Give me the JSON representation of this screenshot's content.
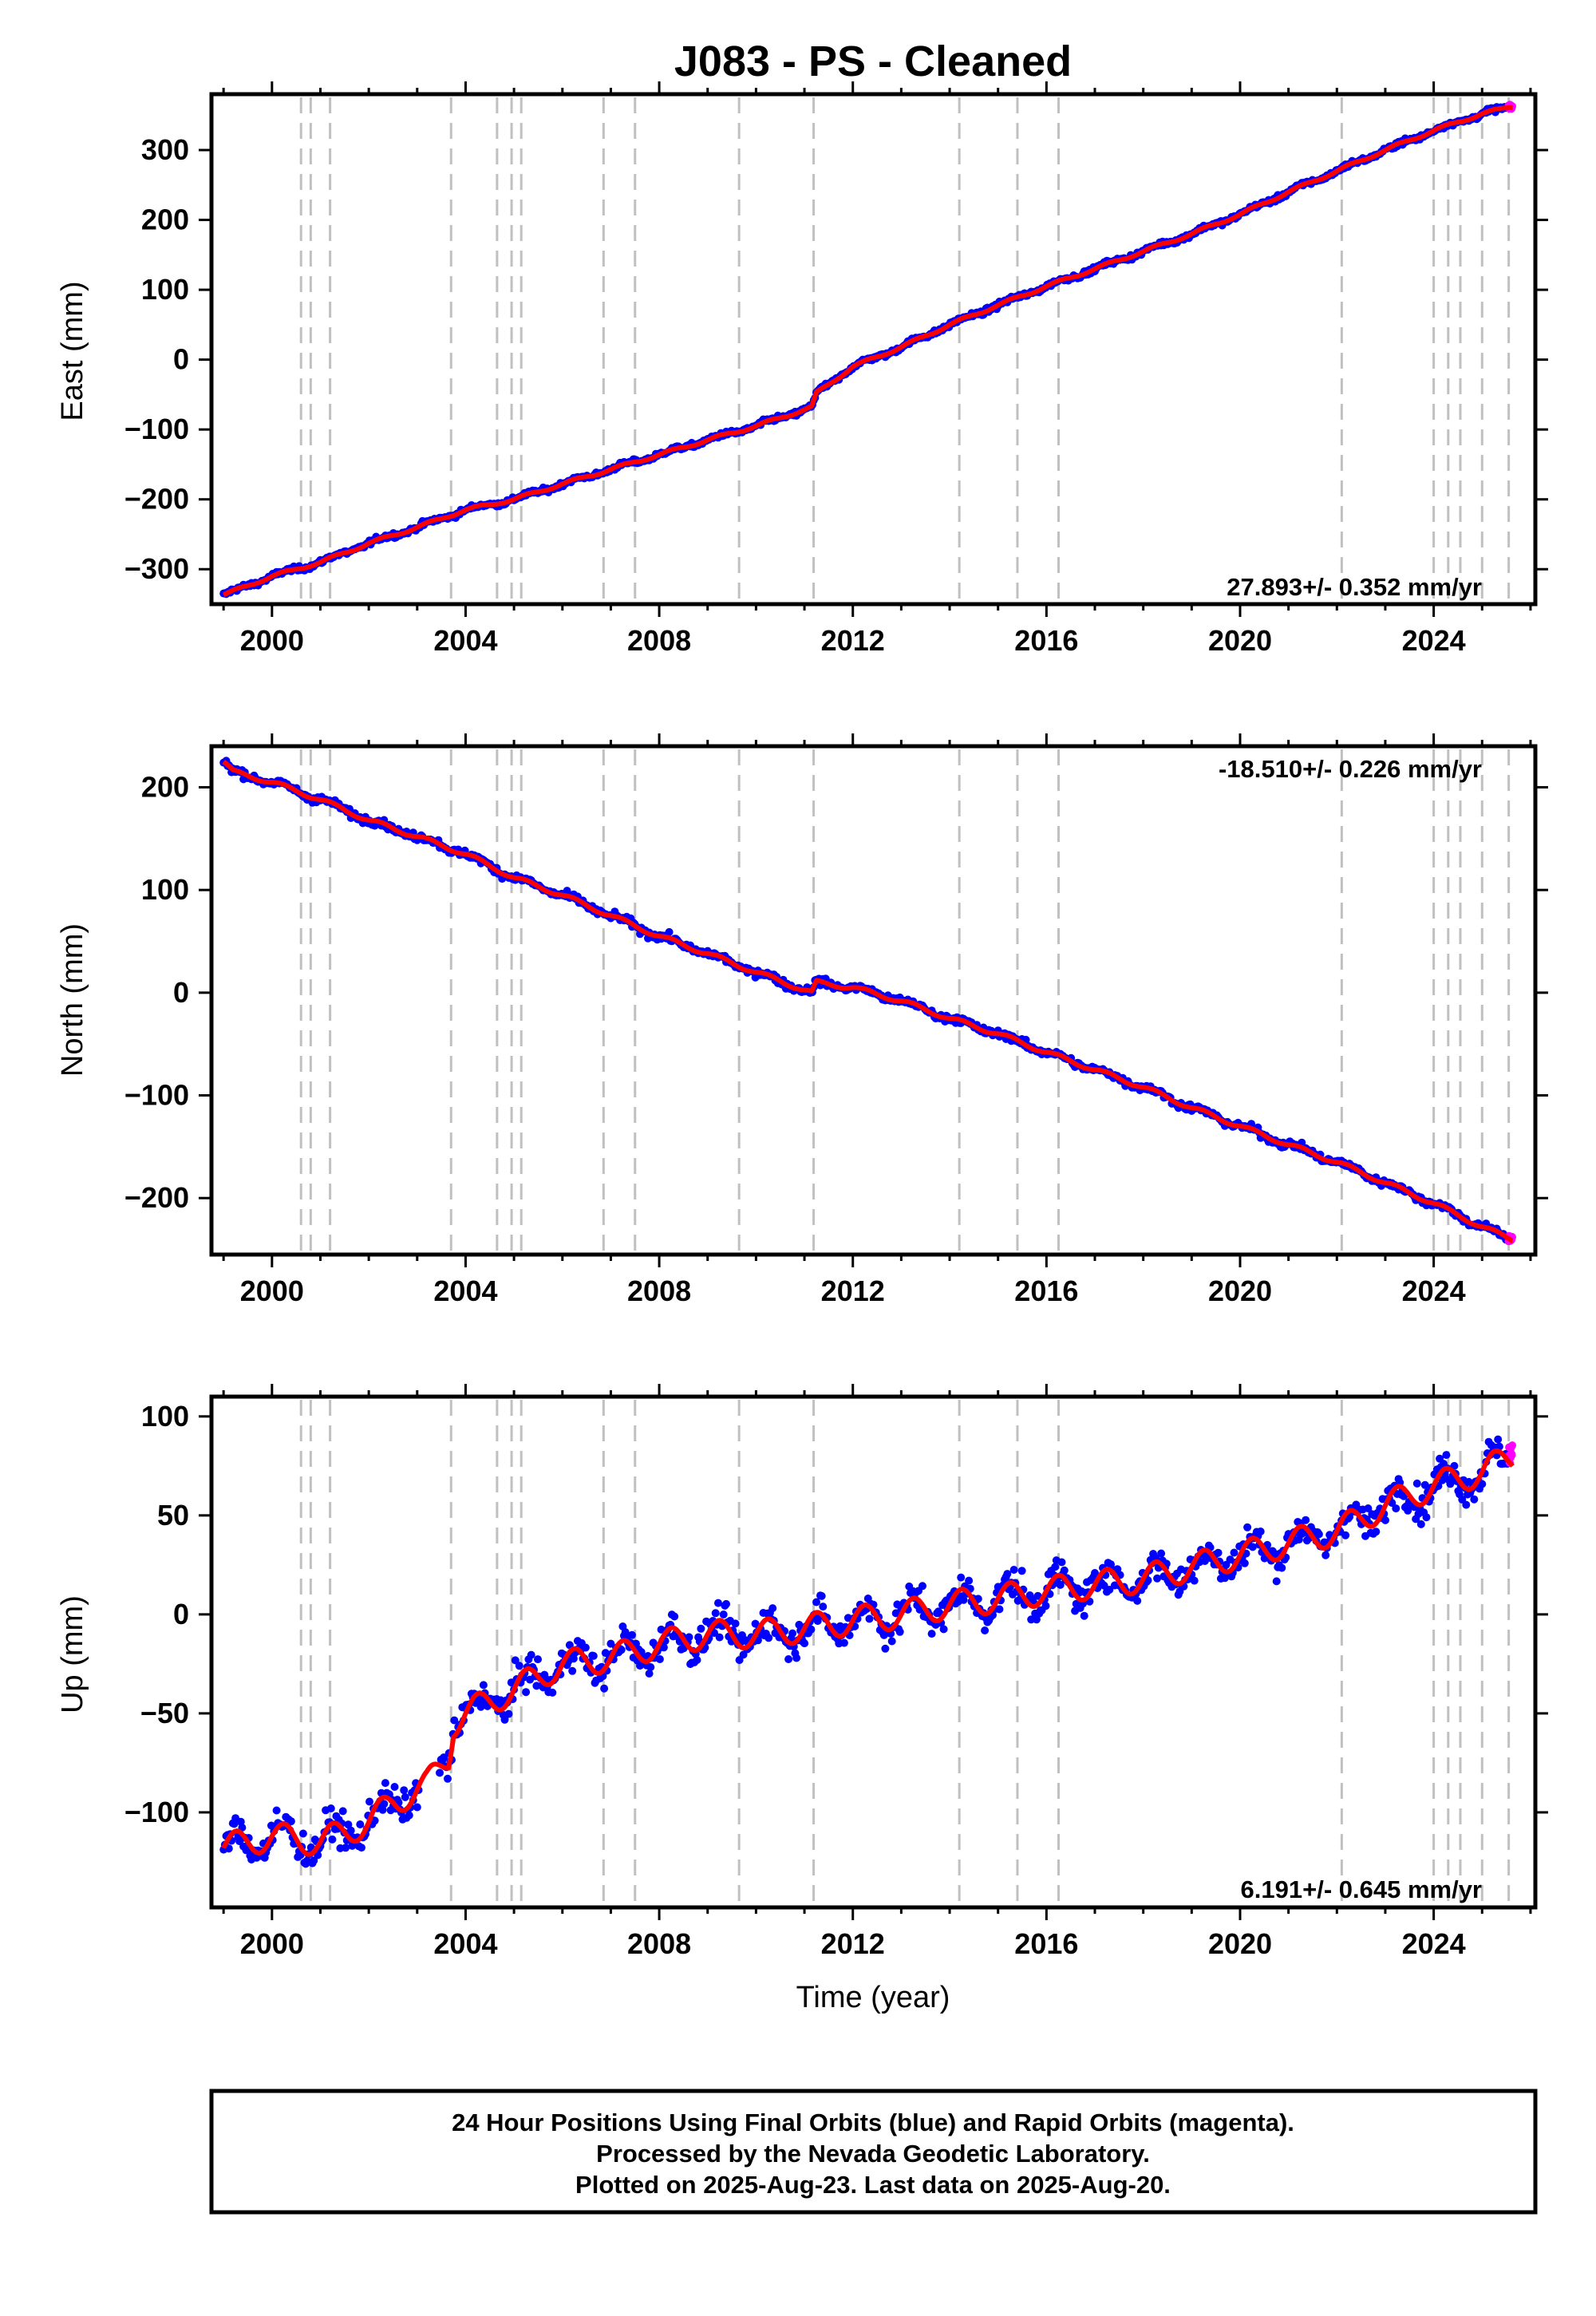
{
  "title": "J083  - PS - Cleaned",
  "xlabel": "Time (year)",
  "note": {
    "line1": "24 Hour Positions Using Final Orbits (blue) and Rapid Orbits (magenta).",
    "line2": "Processed by the Nevada Geodetic Laboratory.",
    "line3": "Plotted on 2025-Aug-23. Last data on 2025-Aug-20."
  },
  "colors": {
    "final_orbits": "#0000ff",
    "rapid_orbits": "#ff00ff",
    "model_fit": "#ff0000",
    "event_lines": "#c0c0c0",
    "frame": "#000000"
  },
  "chart_data": [
    {
      "type": "scatter",
      "component": "east",
      "ylabel": "East (mm)",
      "rate_label": "27.893+/- 0.352 mm/yr",
      "rate_value": 27.893,
      "rate_sigma": 0.352,
      "xlim": [
        1998.75,
        2026.1
      ],
      "ylim": [
        -350,
        380
      ],
      "xticks": [
        2000,
        2004,
        2008,
        2012,
        2016,
        2020,
        2024
      ],
      "yticks": [
        -300,
        -200,
        -100,
        0,
        100,
        200,
        300
      ],
      "grid": false,
      "data_start": 1999.0,
      "final_end": 2025.55,
      "rapid_end": 2025.63,
      "offsets": [
        {
          "x": 2011.19,
          "y": 16
        }
      ],
      "series_points": [
        {
          "x": 1999.0,
          "y": -337
        },
        {
          "x": 2000.0,
          "y": -310
        },
        {
          "x": 2001.0,
          "y": -290
        },
        {
          "x": 2002.0,
          "y": -263
        },
        {
          "x": 2003.0,
          "y": -240
        },
        {
          "x": 2004.0,
          "y": -215
        },
        {
          "x": 2005.0,
          "y": -200
        },
        {
          "x": 2006.0,
          "y": -178
        },
        {
          "x": 2007.0,
          "y": -157
        },
        {
          "x": 2008.0,
          "y": -136
        },
        {
          "x": 2009.0,
          "y": -115
        },
        {
          "x": 2010.0,
          "y": -95
        },
        {
          "x": 2011.15,
          "y": -68
        },
        {
          "x": 2011.25,
          "y": -48
        },
        {
          "x": 2012.0,
          "y": -10
        },
        {
          "x": 2013.0,
          "y": 18
        },
        {
          "x": 2014.0,
          "y": 50
        },
        {
          "x": 2015.0,
          "y": 78
        },
        {
          "x": 2016.0,
          "y": 105
        },
        {
          "x": 2017.0,
          "y": 130
        },
        {
          "x": 2018.0,
          "y": 155
        },
        {
          "x": 2019.0,
          "y": 180
        },
        {
          "x": 2020.0,
          "y": 208
        },
        {
          "x": 2021.0,
          "y": 240
        },
        {
          "x": 2022.0,
          "y": 270
        },
        {
          "x": 2023.0,
          "y": 300
        },
        {
          "x": 2024.0,
          "y": 328
        },
        {
          "x": 2025.0,
          "y": 352
        },
        {
          "x": 2025.6,
          "y": 362
        }
      ],
      "seasonal_amplitude": 2,
      "scatter_sigma": 3
    },
    {
      "type": "scatter",
      "component": "north",
      "ylabel": "North (mm)",
      "rate_label": "-18.510+/- 0.226 mm/yr",
      "rate_value": -18.51,
      "rate_sigma": 0.226,
      "xlim": [
        1998.75,
        2026.1
      ],
      "ylim": [
        -255,
        240
      ],
      "xticks": [
        2000,
        2004,
        2008,
        2012,
        2016,
        2020,
        2024
      ],
      "yticks": [
        -200,
        -100,
        0,
        100,
        200
      ],
      "grid": false,
      "data_start": 1999.0,
      "final_end": 2025.55,
      "rapid_end": 2025.63,
      "offsets": [
        {
          "x": 2011.19,
          "y": 13
        }
      ],
      "series_points": [
        {
          "x": 1999.0,
          "y": 225
        },
        {
          "x": 1999.2,
          "y": 215
        },
        {
          "x": 2000.0,
          "y": 205
        },
        {
          "x": 2001.0,
          "y": 188
        },
        {
          "x": 2002.0,
          "y": 168
        },
        {
          "x": 2003.0,
          "y": 152
        },
        {
          "x": 2004.0,
          "y": 135
        },
        {
          "x": 2005.0,
          "y": 112
        },
        {
          "x": 2006.0,
          "y": 95
        },
        {
          "x": 2007.0,
          "y": 75
        },
        {
          "x": 2008.0,
          "y": 55
        },
        {
          "x": 2009.0,
          "y": 38
        },
        {
          "x": 2010.0,
          "y": 20
        },
        {
          "x": 2011.15,
          "y": 0
        },
        {
          "x": 2011.25,
          "y": 10
        },
        {
          "x": 2012.0,
          "y": 5
        },
        {
          "x": 2013.0,
          "y": -8
        },
        {
          "x": 2014.0,
          "y": -25
        },
        {
          "x": 2015.0,
          "y": -40
        },
        {
          "x": 2016.0,
          "y": -58
        },
        {
          "x": 2017.0,
          "y": -75
        },
        {
          "x": 2018.0,
          "y": -92
        },
        {
          "x": 2019.0,
          "y": -112
        },
        {
          "x": 2020.0,
          "y": -130
        },
        {
          "x": 2021.0,
          "y": -148
        },
        {
          "x": 2022.0,
          "y": -165
        },
        {
          "x": 2023.0,
          "y": -185
        },
        {
          "x": 2024.0,
          "y": -205
        },
        {
          "x": 2025.0,
          "y": -228
        },
        {
          "x": 2025.6,
          "y": -240
        }
      ],
      "seasonal_amplitude": 2,
      "scatter_sigma": 3
    },
    {
      "type": "scatter",
      "component": "up",
      "ylabel": "Up (mm)",
      "rate_label": "6.191+/- 0.645 mm/yr",
      "rate_value": 6.191,
      "rate_sigma": 0.645,
      "xlim": [
        1998.75,
        2026.1
      ],
      "ylim": [
        -148,
        110
      ],
      "xticks": [
        2000,
        2004,
        2008,
        2012,
        2016,
        2020,
        2024
      ],
      "yticks": [
        -100,
        -50,
        0,
        50,
        100
      ],
      "grid": false,
      "data_start": 1999.0,
      "final_end": 2025.55,
      "rapid_end": 2025.63,
      "data_gap": [
        2003.05,
        2003.45
      ],
      "offsets": [
        {
          "x": 2003.7,
          "y": 15
        }
      ],
      "series_points": [
        {
          "x": 1999.0,
          "y": -118
        },
        {
          "x": 2000.0,
          "y": -112
        },
        {
          "x": 2001.0,
          "y": -115
        },
        {
          "x": 2002.0,
          "y": -105
        },
        {
          "x": 2002.5,
          "y": -95
        },
        {
          "x": 2003.2,
          "y": -86
        },
        {
          "x": 2003.65,
          "y": -72
        },
        {
          "x": 2003.75,
          "y": -55
        },
        {
          "x": 2004.0,
          "y": -50
        },
        {
          "x": 2005.0,
          "y": -38
        },
        {
          "x": 2006.0,
          "y": -25
        },
        {
          "x": 2007.0,
          "y": -22
        },
        {
          "x": 2008.0,
          "y": -15
        },
        {
          "x": 2009.0,
          "y": -10
        },
        {
          "x": 2010.0,
          "y": -10
        },
        {
          "x": 2011.0,
          "y": -7
        },
        {
          "x": 2012.0,
          "y": -3
        },
        {
          "x": 2013.0,
          "y": 0
        },
        {
          "x": 2014.0,
          "y": 5
        },
        {
          "x": 2015.0,
          "y": 8
        },
        {
          "x": 2016.0,
          "y": 12
        },
        {
          "x": 2017.0,
          "y": 15
        },
        {
          "x": 2018.0,
          "y": 18
        },
        {
          "x": 2019.0,
          "y": 24
        },
        {
          "x": 2020.0,
          "y": 30
        },
        {
          "x": 2021.0,
          "y": 36
        },
        {
          "x": 2022.0,
          "y": 42
        },
        {
          "x": 2023.0,
          "y": 55
        },
        {
          "x": 2024.0,
          "y": 65
        },
        {
          "x": 2025.0,
          "y": 72
        },
        {
          "x": 2025.6,
          "y": 80
        }
      ],
      "seasonal_amplitude": 7,
      "scatter_sigma": 7
    }
  ],
  "event_lines_x": [
    2000.6,
    2000.8,
    2001.2,
    2003.7,
    2004.65,
    2004.95,
    2005.15,
    2006.85,
    2007.5,
    2009.65,
    2011.19,
    2014.2,
    2015.4,
    2016.25,
    2022.1,
    2024.0,
    2024.3,
    2024.55,
    2025.0,
    2025.55
  ]
}
